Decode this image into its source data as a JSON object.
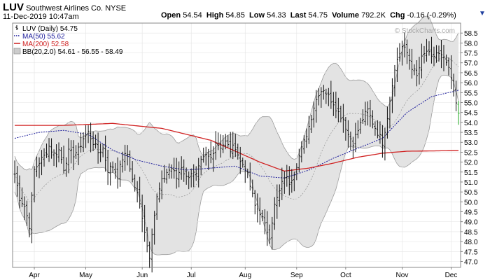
{
  "header": {
    "symbol": "LUV",
    "company": "Southwest Airlines Co.",
    "exchange": "NYSE",
    "datetime": "11-Dec-2019 10:47am",
    "open_label": "Open",
    "open": "54.54",
    "high_label": "High",
    "high": "54.85",
    "low_label": "Low",
    "low": "54.33",
    "last_label": "Last",
    "last": "54.75",
    "volume_label": "Volume",
    "volume": "792.2K",
    "chg_label": "Chg",
    "chg": "-0.16 (-0.29%)",
    "dropdown_glyph": "▼",
    "watermark": "© StockCharts.com"
  },
  "legend": [
    {
      "text": "LUV (Daily) 54.75",
      "color": "#000000",
      "marker": "bar"
    },
    {
      "text": "MA(50) 55.62",
      "color": "#1a1a9a",
      "marker": "dotted"
    },
    {
      "text": "MA(200) 52.58",
      "color": "#d02020",
      "marker": "solid"
    },
    {
      "text": "BB(20,2.0) 54.61 - 56.55 - 58.49",
      "color": "#999999",
      "marker": "box"
    }
  ],
  "chart_data": {
    "type": "line",
    "title": "LUV Southwest Airlines Co. NYSE",
    "ylim": [
      46.7,
      59.0
    ],
    "y_ticks": [
      47.0,
      47.5,
      48.0,
      48.5,
      49.0,
      49.5,
      50.0,
      50.5,
      51.0,
      51.5,
      52.0,
      52.5,
      53.0,
      53.5,
      54.0,
      54.5,
      55.0,
      55.5,
      56.0,
      56.5,
      57.0,
      57.5,
      58.0,
      58.5
    ],
    "y_tick_labels": [
      "47.0",
      "47.5",
      "48.0",
      "48.5",
      "49.0",
      "49.5",
      "50.0",
      "50.5",
      "51.0",
      "51.5",
      "52.0",
      "52.5",
      "53.0",
      "53.5",
      "54.0",
      "54.5",
      "55.0",
      "55.5",
      "56.0",
      "56.5",
      "57.0",
      "57.5",
      "58.0",
      "58.5"
    ],
    "months": [
      {
        "label": "Apr",
        "index": 8
      },
      {
        "label": "May",
        "index": 29
      },
      {
        "label": "Jun",
        "index": 52
      },
      {
        "label": "Jul",
        "index": 72
      },
      {
        "label": "Aug",
        "index": 94
      },
      {
        "label": "Sep",
        "index": 115
      },
      {
        "label": "Oct",
        "index": 135
      },
      {
        "label": "Nov",
        "index": 158
      },
      {
        "label": "Dec",
        "index": 178
      }
    ],
    "num_bars": 182,
    "price_anchors": [
      [
        0,
        51.4
      ],
      [
        2,
        50.2
      ],
      [
        4,
        49.8
      ],
      [
        6,
        48.8
      ],
      [
        8,
        51.6
      ],
      [
        10,
        52.0
      ],
      [
        12,
        52.3
      ],
      [
        14,
        52.8
      ],
      [
        16,
        52.4
      ],
      [
        18,
        52.6
      ],
      [
        20,
        51.7
      ],
      [
        22,
        52.5
      ],
      [
        24,
        52.4
      ],
      [
        26,
        52.6
      ],
      [
        28,
        53.2
      ],
      [
        30,
        53.5
      ],
      [
        32,
        53.0
      ],
      [
        34,
        52.5
      ],
      [
        36,
        52.7
      ],
      [
        38,
        51.6
      ],
      [
        40,
        51.8
      ],
      [
        42,
        51.3
      ],
      [
        44,
        52.2
      ],
      [
        46,
        52.4
      ],
      [
        48,
        51.1
      ],
      [
        50,
        50.4
      ],
      [
        52,
        49.3
      ],
      [
        54,
        47.8
      ],
      [
        55,
        47.3
      ],
      [
        56,
        48.5
      ],
      [
        58,
        50.2
      ],
      [
        60,
        51.0
      ],
      [
        62,
        51.5
      ],
      [
        64,
        51.7
      ],
      [
        66,
        51.2
      ],
      [
        68,
        51.8
      ],
      [
        70,
        51.2
      ],
      [
        72,
        51.5
      ],
      [
        74,
        51.3
      ],
      [
        76,
        52.0
      ],
      [
        78,
        52.3
      ],
      [
        80,
        52.2
      ],
      [
        82,
        53.0
      ],
      [
        84,
        52.8
      ],
      [
        86,
        53.0
      ],
      [
        88,
        52.6
      ],
      [
        90,
        52.8
      ],
      [
        92,
        52.0
      ],
      [
        94,
        51.8
      ],
      [
        96,
        50.8
      ],
      [
        98,
        49.8
      ],
      [
        100,
        49.5
      ],
      [
        102,
        48.8
      ],
      [
        104,
        48.3
      ],
      [
        106,
        49.8
      ],
      [
        108,
        50.5
      ],
      [
        110,
        51.3
      ],
      [
        112,
        51.0
      ],
      [
        114,
        51.5
      ],
      [
        116,
        52.3
      ],
      [
        118,
        53.0
      ],
      [
        120,
        53.8
      ],
      [
        122,
        54.8
      ],
      [
        124,
        55.5
      ],
      [
        126,
        55.7
      ],
      [
        128,
        55.3
      ],
      [
        130,
        55.0
      ],
      [
        132,
        54.5
      ],
      [
        134,
        54.2
      ],
      [
        136,
        53.4
      ],
      [
        138,
        53.0
      ],
      [
        140,
        53.6
      ],
      [
        142,
        54.2
      ],
      [
        144,
        54.6
      ],
      [
        146,
        54.0
      ],
      [
        148,
        53.5
      ],
      [
        150,
        53.0
      ],
      [
        152,
        54.3
      ],
      [
        154,
        56.0
      ],
      [
        156,
        57.2
      ],
      [
        158,
        57.8
      ],
      [
        160,
        57.5
      ],
      [
        162,
        56.8
      ],
      [
        164,
        56.3
      ],
      [
        166,
        57.2
      ],
      [
        168,
        57.6
      ],
      [
        170,
        57.2
      ],
      [
        172,
        57.5
      ],
      [
        174,
        57.3
      ],
      [
        176,
        57.0
      ],
      [
        178,
        56.2
      ],
      [
        179,
        55.5
      ],
      [
        180,
        55.0
      ],
      [
        181,
        54.6
      ]
    ],
    "ma50_anchors": [
      [
        0,
        53.2
      ],
      [
        10,
        53.5
      ],
      [
        20,
        53.6
      ],
      [
        30,
        53.4
      ],
      [
        40,
        52.6
      ],
      [
        50,
        52.1
      ],
      [
        60,
        51.8
      ],
      [
        70,
        51.6
      ],
      [
        80,
        51.7
      ],
      [
        90,
        51.8
      ],
      [
        100,
        51.3
      ],
      [
        110,
        51.2
      ],
      [
        120,
        51.6
      ],
      [
        130,
        52.2
      ],
      [
        140,
        52.7
      ],
      [
        150,
        53.2
      ],
      [
        160,
        54.5
      ],
      [
        170,
        55.3
      ],
      [
        181,
        55.62
      ]
    ],
    "ma200_anchors": [
      [
        0,
        53.85
      ],
      [
        20,
        53.85
      ],
      [
        40,
        53.95
      ],
      [
        60,
        53.7
      ],
      [
        80,
        53.1
      ],
      [
        100,
        52.0
      ],
      [
        110,
        51.55
      ],
      [
        120,
        51.7
      ],
      [
        130,
        51.95
      ],
      [
        140,
        52.25
      ],
      [
        150,
        52.45
      ],
      [
        160,
        52.55
      ],
      [
        181,
        52.58
      ]
    ]
  }
}
